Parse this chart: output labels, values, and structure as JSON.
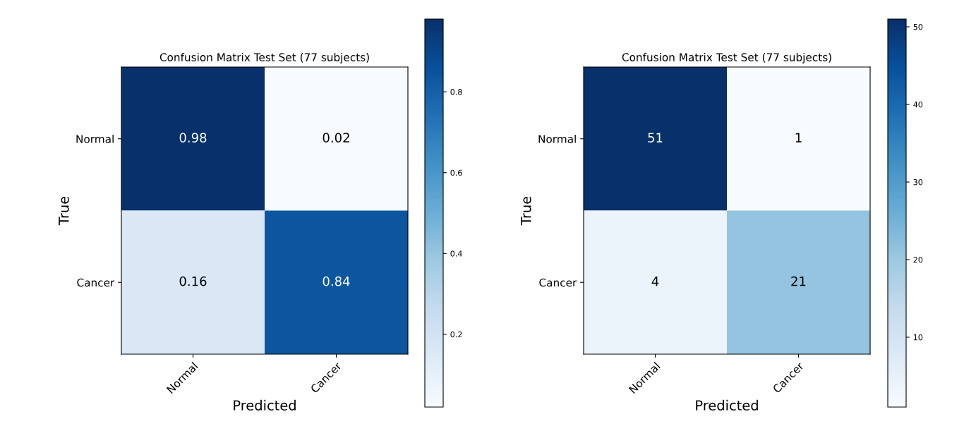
{
  "chart_data": [
    {
      "type": "heatmap",
      "title": "Confusion Matrix Test Set (77 subjects)",
      "xlabel": "Predicted",
      "ylabel": "True",
      "categories": [
        "Normal",
        "Cancer"
      ],
      "y_categories": [
        "Normal",
        "Cancer"
      ],
      "cells": [
        [
          0.98,
          0.02
        ],
        [
          0.16,
          0.84
        ]
      ],
      "data_labels": true,
      "clim": [
        0.02,
        0.98
      ],
      "cticks": [
        0.2,
        0.4,
        0.6,
        0.8
      ]
    },
    {
      "type": "heatmap",
      "title": "Confusion Matrix Test Set (77 subjects)",
      "xlabel": "Predicted",
      "ylabel": "True",
      "categories": [
        "Normal",
        "Cancer"
      ],
      "y_categories": [
        "Normal",
        "Cancer"
      ],
      "cells": [
        [
          51,
          1
        ],
        [
          4,
          21
        ]
      ],
      "data_labels": true,
      "clim": [
        1,
        51
      ],
      "cticks": [
        10,
        20,
        30,
        40,
        50
      ]
    }
  ]
}
